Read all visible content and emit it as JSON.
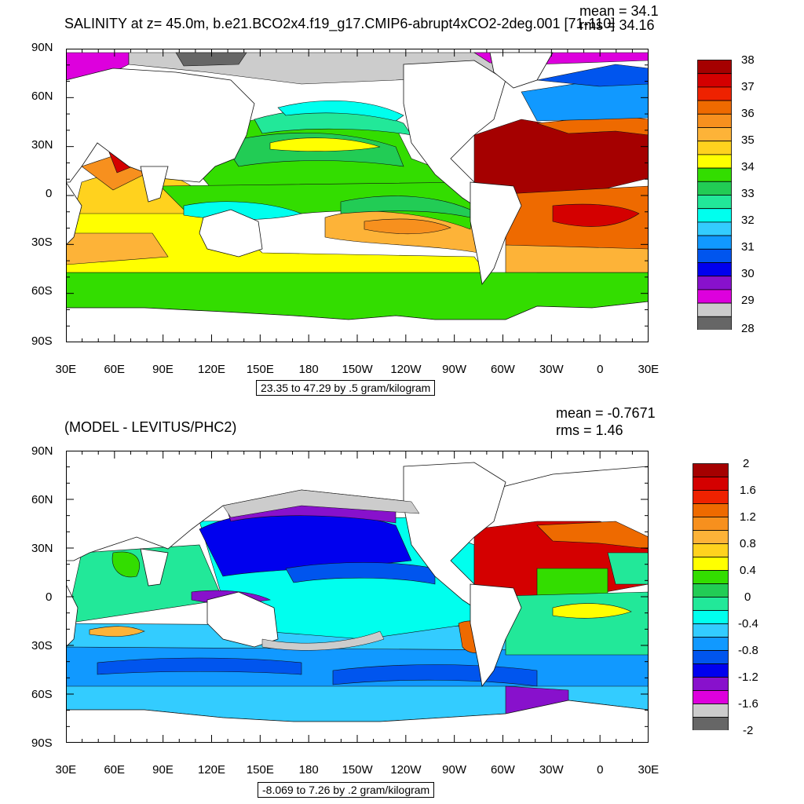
{
  "panels": [
    {
      "title": "SALINITY at z=  45.0m, b.e21.BCO2x4.f19_g17.CMIP6-abrupt4xCO2-2deg.001 [71-110]",
      "mean": "mean = 34.1",
      "rms": "rms = 34.16",
      "caption": "23.35 to 47.29 by .5 gram/kilogram",
      "lat_labels": [
        "90N",
        "60N",
        "30N",
        "0",
        "30S",
        "60S",
        "90S"
      ],
      "lon_labels": [
        "30E",
        "60E",
        "90E",
        "120E",
        "150E",
        "180",
        "150W",
        "120W",
        "90W",
        "60W",
        "30W",
        "0",
        "30E"
      ],
      "colorbar": {
        "labels": [
          "38",
          "37",
          "36",
          "35",
          "34",
          "33",
          "32",
          "31",
          "30",
          "29",
          "28"
        ],
        "colors": [
          "#a50000",
          "#d40000",
          "#ee2200",
          "#ee6a00",
          "#f7901e",
          "#fdb338",
          "#ffd21e",
          "#ffff00",
          "#33dd00",
          "#22cc55",
          "#22e899",
          "#00ffee",
          "#33ccff",
          "#1199ff",
          "#0055ee",
          "#0000ee",
          "#8811cc",
          "#dd00dd",
          "#cccccc",
          "#666666"
        ]
      }
    },
    {
      "title": "(MODEL - LEVITUS/PHC2)",
      "mean": "mean = -0.7671",
      "rms": "rms = 1.46",
      "caption": "-8.069 to 7.26 by .2 gram/kilogram",
      "lat_labels": [
        "90N",
        "60N",
        "30N",
        "0",
        "30S",
        "60S",
        "90S"
      ],
      "lon_labels": [
        "30E",
        "60E",
        "90E",
        "120E",
        "150E",
        "180",
        "150W",
        "120W",
        "90W",
        "60W",
        "30W",
        "0",
        "30E"
      ],
      "colorbar": {
        "labels": [
          "2",
          "1.6",
          "1.2",
          "0.8",
          "0.4",
          "0",
          "-0.4",
          "-0.8",
          "-1.2",
          "-1.6",
          "-2"
        ],
        "colors": [
          "#a50000",
          "#d40000",
          "#ee2200",
          "#ee6a00",
          "#f7901e",
          "#fdb338",
          "#ffd21e",
          "#ffff00",
          "#33dd00",
          "#22cc55",
          "#22e899",
          "#00ffee",
          "#33ccff",
          "#1199ff",
          "#0055ee",
          "#0000ee",
          "#8811cc",
          "#dd00dd",
          "#cccccc",
          "#666666"
        ]
      }
    }
  ]
}
